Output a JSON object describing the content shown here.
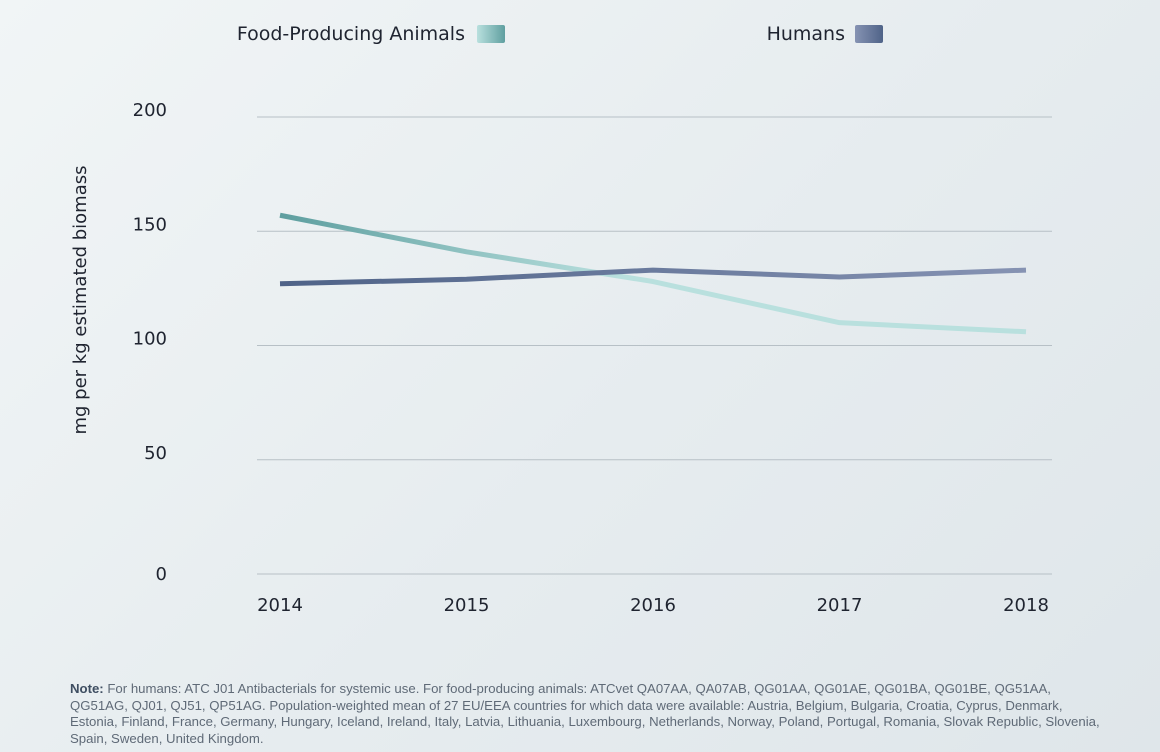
{
  "chart_data": {
    "type": "line",
    "title": "",
    "xlabel": "",
    "ylabel": "mg per kg estimated biomass",
    "x": [
      "2014",
      "2015",
      "2016",
      "2017",
      "2018"
    ],
    "yticks": [
      "0",
      "50",
      "100",
      "150",
      "200"
    ],
    "ylim": [
      0,
      200
    ],
    "grid": "horizontal",
    "legend_position": "top",
    "series": [
      {
        "name": "Food-Producing Animals",
        "values": [
          157,
          141,
          128,
          110,
          106
        ],
        "color_start": "#5f9fa0",
        "color_end": "#b9e0de"
      },
      {
        "name": "Humans",
        "values": [
          127,
          129,
          133,
          130,
          133
        ],
        "color_start": "#4f6388",
        "color_end": "#8693b3"
      }
    ]
  },
  "note": {
    "label": "Note:",
    "text": "For humans: ATC J01 Antibacterials for systemic use. For food-producing animals: ATCvet QA07AA, QA07AB, QG01AA, QG01AE, QG01BA, QG01BE, QG51AA, QG51AG, QJ01, QJ51, QP51AG. Population-weighted mean of 27 EU/EEA countries for which data were available: Austria, Belgium, Bulgaria, Croatia, Cyprus, Denmark, Estonia, Finland, France, Germany, Hungary, Iceland, Ireland, Italy, Latvia, Lithuania, Luxembourg, Netherlands, Norway, Poland, Portugal, Romania, Slovak Republic, Slovenia, Spain, Sweden, United Kingdom."
  }
}
